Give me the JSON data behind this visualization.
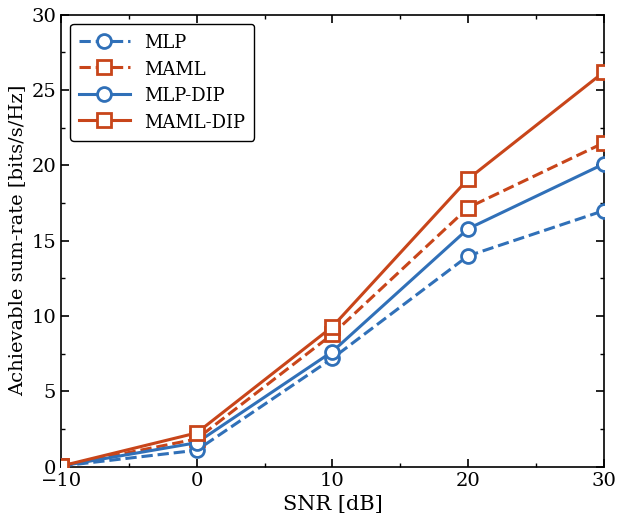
{
  "snr": [
    -10,
    0,
    10,
    20,
    30
  ],
  "MLP": [
    0.05,
    1.1,
    7.2,
    14.0,
    17.0
  ],
  "MAML": [
    0.05,
    1.85,
    8.8,
    17.2,
    21.5
  ],
  "MLP_DIP": [
    0.05,
    1.6,
    7.65,
    15.8,
    20.1
  ],
  "MAML_DIP": [
    0.05,
    2.25,
    9.3,
    19.1,
    26.2
  ],
  "blue_color": "#3070B8",
  "orange_color": "#C8451A",
  "xlabel": "SNR [dB]",
  "ylabel": "Achievable sum-rate [bits/s/Hz]",
  "xlim": [
    -10,
    30
  ],
  "ylim": [
    0,
    30
  ],
  "yticks": [
    0,
    5,
    10,
    15,
    20,
    25,
    30
  ],
  "xticks": [
    -10,
    0,
    10,
    20,
    30
  ],
  "legend_labels": [
    "MLP",
    "MAML",
    "MLP-DIP",
    "MAML-DIP"
  ],
  "linewidth": 2.2,
  "markersize": 10
}
